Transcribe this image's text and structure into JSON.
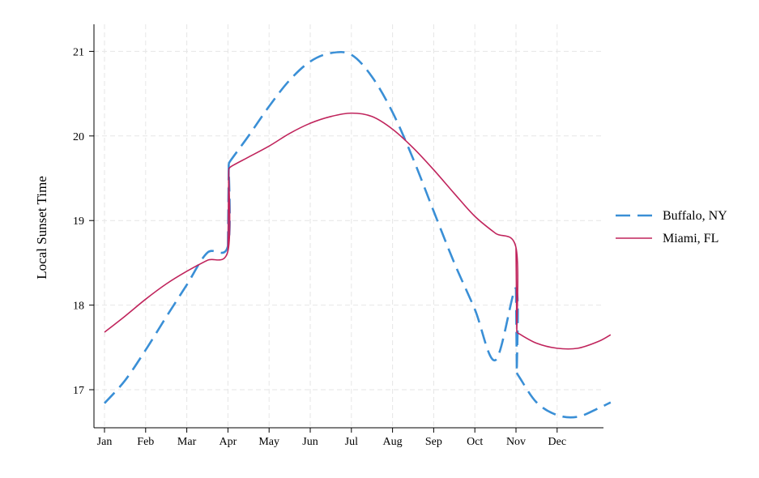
{
  "chart_data": {
    "type": "line",
    "title": "",
    "xlabel": "",
    "ylabel": "Local Sunset Time",
    "x_tick_labels": [
      "Jan",
      "Feb",
      "Mar",
      "Apr",
      "May",
      "Jun",
      "Jul",
      "Aug",
      "Sep",
      "Oct",
      "Nov",
      "Dec"
    ],
    "y_ticks": [
      17,
      18,
      19,
      20,
      21
    ],
    "ylim": [
      16.55,
      21.32
    ],
    "xlim": [
      0,
      12.3
    ],
    "grid": true,
    "legend_position": "right",
    "series": [
      {
        "name": "Buffalo, NY",
        "color": "#3a8fd6",
        "line_style": "dashed",
        "x": [
          0,
          0.5,
          1,
          1.5,
          2,
          2.5,
          3,
          3.02,
          3.08,
          3.5,
          4,
          4.5,
          5,
          5.5,
          6,
          6.5,
          7,
          7.5,
          8,
          8.5,
          9,
          9.5,
          10,
          10.02,
          10.08,
          10.5,
          11,
          11.5,
          12,
          12.3
        ],
        "y": [
          16.84,
          17.11,
          17.47,
          17.86,
          18.24,
          18.62,
          18.7,
          19.67,
          19.72,
          20.0,
          20.35,
          20.66,
          20.88,
          20.98,
          20.96,
          20.7,
          20.28,
          19.73,
          19.11,
          18.5,
          17.95,
          17.35,
          18.2,
          17.2,
          17.15,
          16.85,
          16.7,
          16.68,
          16.78,
          16.85
        ]
      },
      {
        "name": "Miami, FL",
        "color": "#c0245c",
        "line_style": "solid",
        "x": [
          0,
          0.5,
          1,
          1.5,
          2,
          2.5,
          3,
          3.02,
          3.08,
          3.5,
          4,
          4.5,
          5,
          5.5,
          6,
          6.5,
          7,
          7.5,
          8,
          8.5,
          9,
          9.5,
          10,
          10.02,
          10.08,
          10.5,
          11,
          11.5,
          12,
          12.3
        ],
        "y": [
          17.68,
          17.87,
          18.07,
          18.25,
          18.4,
          18.53,
          18.64,
          19.6,
          19.64,
          19.75,
          19.88,
          20.03,
          20.15,
          20.23,
          20.27,
          20.23,
          20.08,
          19.86,
          19.6,
          19.32,
          19.05,
          18.85,
          18.68,
          17.68,
          17.66,
          17.55,
          17.49,
          17.49,
          17.57,
          17.65
        ]
      }
    ]
  }
}
